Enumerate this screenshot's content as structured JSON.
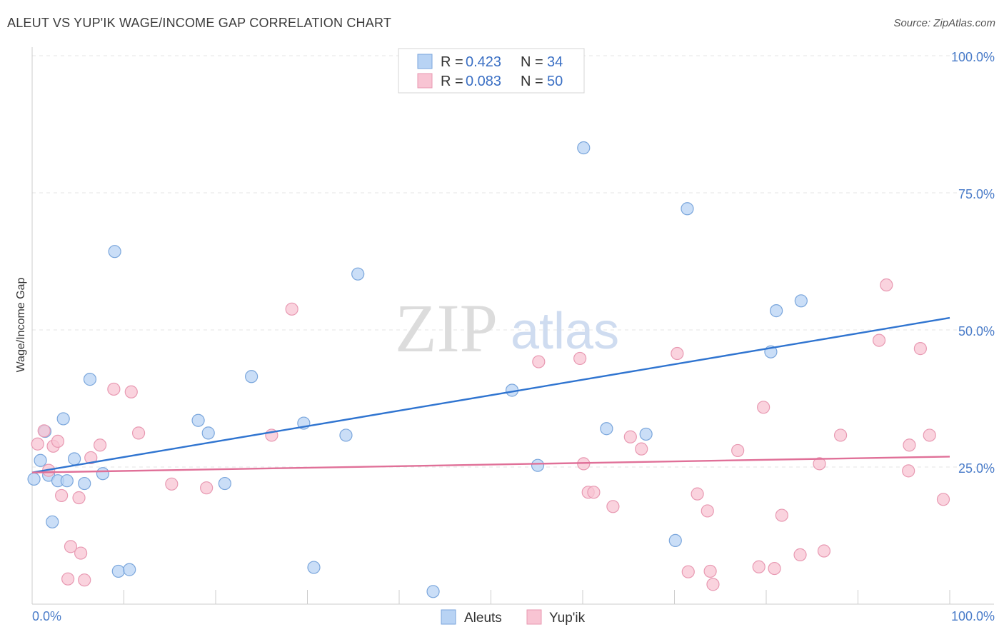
{
  "header": {
    "title": "ALEUT VS YUP'IK WAGE/INCOME GAP CORRELATION CHART",
    "source": "Source: ZipAtlas.com"
  },
  "watermark": {
    "zip": "ZIP",
    "atlas": "atlas"
  },
  "colors": {
    "aleut_fill": "#b8d3f4",
    "aleut_stroke": "#7aa6dc",
    "aleut_line": "#2f74d0",
    "yupik_fill": "#f8c4d3",
    "yupik_stroke": "#e899b2",
    "yupik_line": "#e07098",
    "grid": "#e6e6e6",
    "tick_label": "#4a7cc9"
  },
  "legend": {
    "rows": [
      {
        "r_label": "R =",
        "r_value": "0.423",
        "n_label": "N =",
        "n_value": "34"
      },
      {
        "r_label": "R =",
        "r_value": "0.083",
        "n_label": "N =",
        "n_value": "50"
      }
    ]
  },
  "bottom_legend": [
    "Aleuts",
    "Yup'ik"
  ],
  "chart_data": {
    "type": "scatter",
    "title": "ALEUT VS YUP'IK WAGE/INCOME GAP CORRELATION CHART",
    "xlabel": "",
    "ylabel": "Wage/Income Gap",
    "xlim": [
      0,
      100
    ],
    "ylim": [
      0,
      100
    ],
    "x_ticks_labeled": [
      "0.0%",
      "100.0%"
    ],
    "y_ticks_labeled": [
      "25.0%",
      "50.0%",
      "75.0%",
      "100.0%"
    ],
    "grid": "horizontal dashed",
    "legend_position": "top-center",
    "series": [
      {
        "name": "Aleuts",
        "r": 0.423,
        "n": 34,
        "trend": {
          "x": [
            0,
            100
          ],
          "y": [
            24.0,
            52.2
          ]
        },
        "points": [
          {
            "x": 0.2,
            "y": 22.8
          },
          {
            "x": 0.9,
            "y": 26.2
          },
          {
            "x": 1.4,
            "y": 31.5
          },
          {
            "x": 1.8,
            "y": 23.5
          },
          {
            "x": 2.2,
            "y": 15.0
          },
          {
            "x": 2.8,
            "y": 22.5
          },
          {
            "x": 3.4,
            "y": 33.8
          },
          {
            "x": 3.8,
            "y": 22.5
          },
          {
            "x": 4.6,
            "y": 26.5
          },
          {
            "x": 5.7,
            "y": 22.0
          },
          {
            "x": 6.3,
            "y": 41.0
          },
          {
            "x": 7.7,
            "y": 23.8
          },
          {
            "x": 9.0,
            "y": 64.3
          },
          {
            "x": 9.4,
            "y": 6.0
          },
          {
            "x": 10.6,
            "y": 6.3
          },
          {
            "x": 18.1,
            "y": 33.5
          },
          {
            "x": 19.2,
            "y": 31.2
          },
          {
            "x": 21.0,
            "y": 22.0
          },
          {
            "x": 23.9,
            "y": 41.5
          },
          {
            "x": 29.6,
            "y": 33.0
          },
          {
            "x": 30.7,
            "y": 6.7
          },
          {
            "x": 34.2,
            "y": 30.8
          },
          {
            "x": 35.5,
            "y": 60.2
          },
          {
            "x": 43.7,
            "y": 2.3
          },
          {
            "x": 52.3,
            "y": 39.0
          },
          {
            "x": 55.1,
            "y": 25.3
          },
          {
            "x": 60.1,
            "y": 83.2
          },
          {
            "x": 62.6,
            "y": 32.0
          },
          {
            "x": 66.9,
            "y": 31.0
          },
          {
            "x": 70.1,
            "y": 11.6
          },
          {
            "x": 71.4,
            "y": 72.1
          },
          {
            "x": 80.5,
            "y": 46.0
          },
          {
            "x": 81.1,
            "y": 53.5
          },
          {
            "x": 83.8,
            "y": 55.3
          }
        ]
      },
      {
        "name": "Yup'ik",
        "r": 0.083,
        "n": 50,
        "trend": {
          "x": [
            0,
            100
          ],
          "y": [
            24.0,
            26.9
          ]
        },
        "points": [
          {
            "x": 0.6,
            "y": 29.2
          },
          {
            "x": 1.3,
            "y": 31.6
          },
          {
            "x": 1.8,
            "y": 24.4
          },
          {
            "x": 2.3,
            "y": 28.8
          },
          {
            "x": 2.8,
            "y": 29.7
          },
          {
            "x": 3.2,
            "y": 19.8
          },
          {
            "x": 3.9,
            "y": 4.6
          },
          {
            "x": 4.2,
            "y": 10.5
          },
          {
            "x": 5.1,
            "y": 19.4
          },
          {
            "x": 5.3,
            "y": 9.3
          },
          {
            "x": 5.7,
            "y": 4.4
          },
          {
            "x": 6.4,
            "y": 26.7
          },
          {
            "x": 7.4,
            "y": 29.0
          },
          {
            "x": 8.9,
            "y": 39.2
          },
          {
            "x": 10.8,
            "y": 38.7
          },
          {
            "x": 11.6,
            "y": 31.2
          },
          {
            "x": 15.2,
            "y": 21.9
          },
          {
            "x": 19.0,
            "y": 21.2
          },
          {
            "x": 26.1,
            "y": 30.8
          },
          {
            "x": 28.3,
            "y": 53.8
          },
          {
            "x": 55.2,
            "y": 44.2
          },
          {
            "x": 59.7,
            "y": 44.8
          },
          {
            "x": 60.1,
            "y": 25.6
          },
          {
            "x": 60.6,
            "y": 20.4
          },
          {
            "x": 61.2,
            "y": 20.4
          },
          {
            "x": 63.3,
            "y": 17.8
          },
          {
            "x": 65.2,
            "y": 30.5
          },
          {
            "x": 66.4,
            "y": 28.3
          },
          {
            "x": 70.3,
            "y": 45.7
          },
          {
            "x": 71.5,
            "y": 5.9
          },
          {
            "x": 72.5,
            "y": 20.1
          },
          {
            "x": 73.6,
            "y": 17.0
          },
          {
            "x": 73.9,
            "y": 6.0
          },
          {
            "x": 74.2,
            "y": 3.6
          },
          {
            "x": 76.9,
            "y": 28.0
          },
          {
            "x": 79.2,
            "y": 6.8
          },
          {
            "x": 79.7,
            "y": 35.9
          },
          {
            "x": 80.9,
            "y": 6.5
          },
          {
            "x": 81.7,
            "y": 16.2
          },
          {
            "x": 83.7,
            "y": 9.0
          },
          {
            "x": 85.8,
            "y": 25.6
          },
          {
            "x": 86.3,
            "y": 9.7
          },
          {
            "x": 88.1,
            "y": 30.8
          },
          {
            "x": 92.3,
            "y": 48.1
          },
          {
            "x": 93.1,
            "y": 58.2
          },
          {
            "x": 95.5,
            "y": 24.3
          },
          {
            "x": 95.6,
            "y": 29.0
          },
          {
            "x": 96.8,
            "y": 46.6
          },
          {
            "x": 97.8,
            "y": 30.8
          },
          {
            "x": 99.3,
            "y": 19.1
          }
        ]
      }
    ]
  }
}
